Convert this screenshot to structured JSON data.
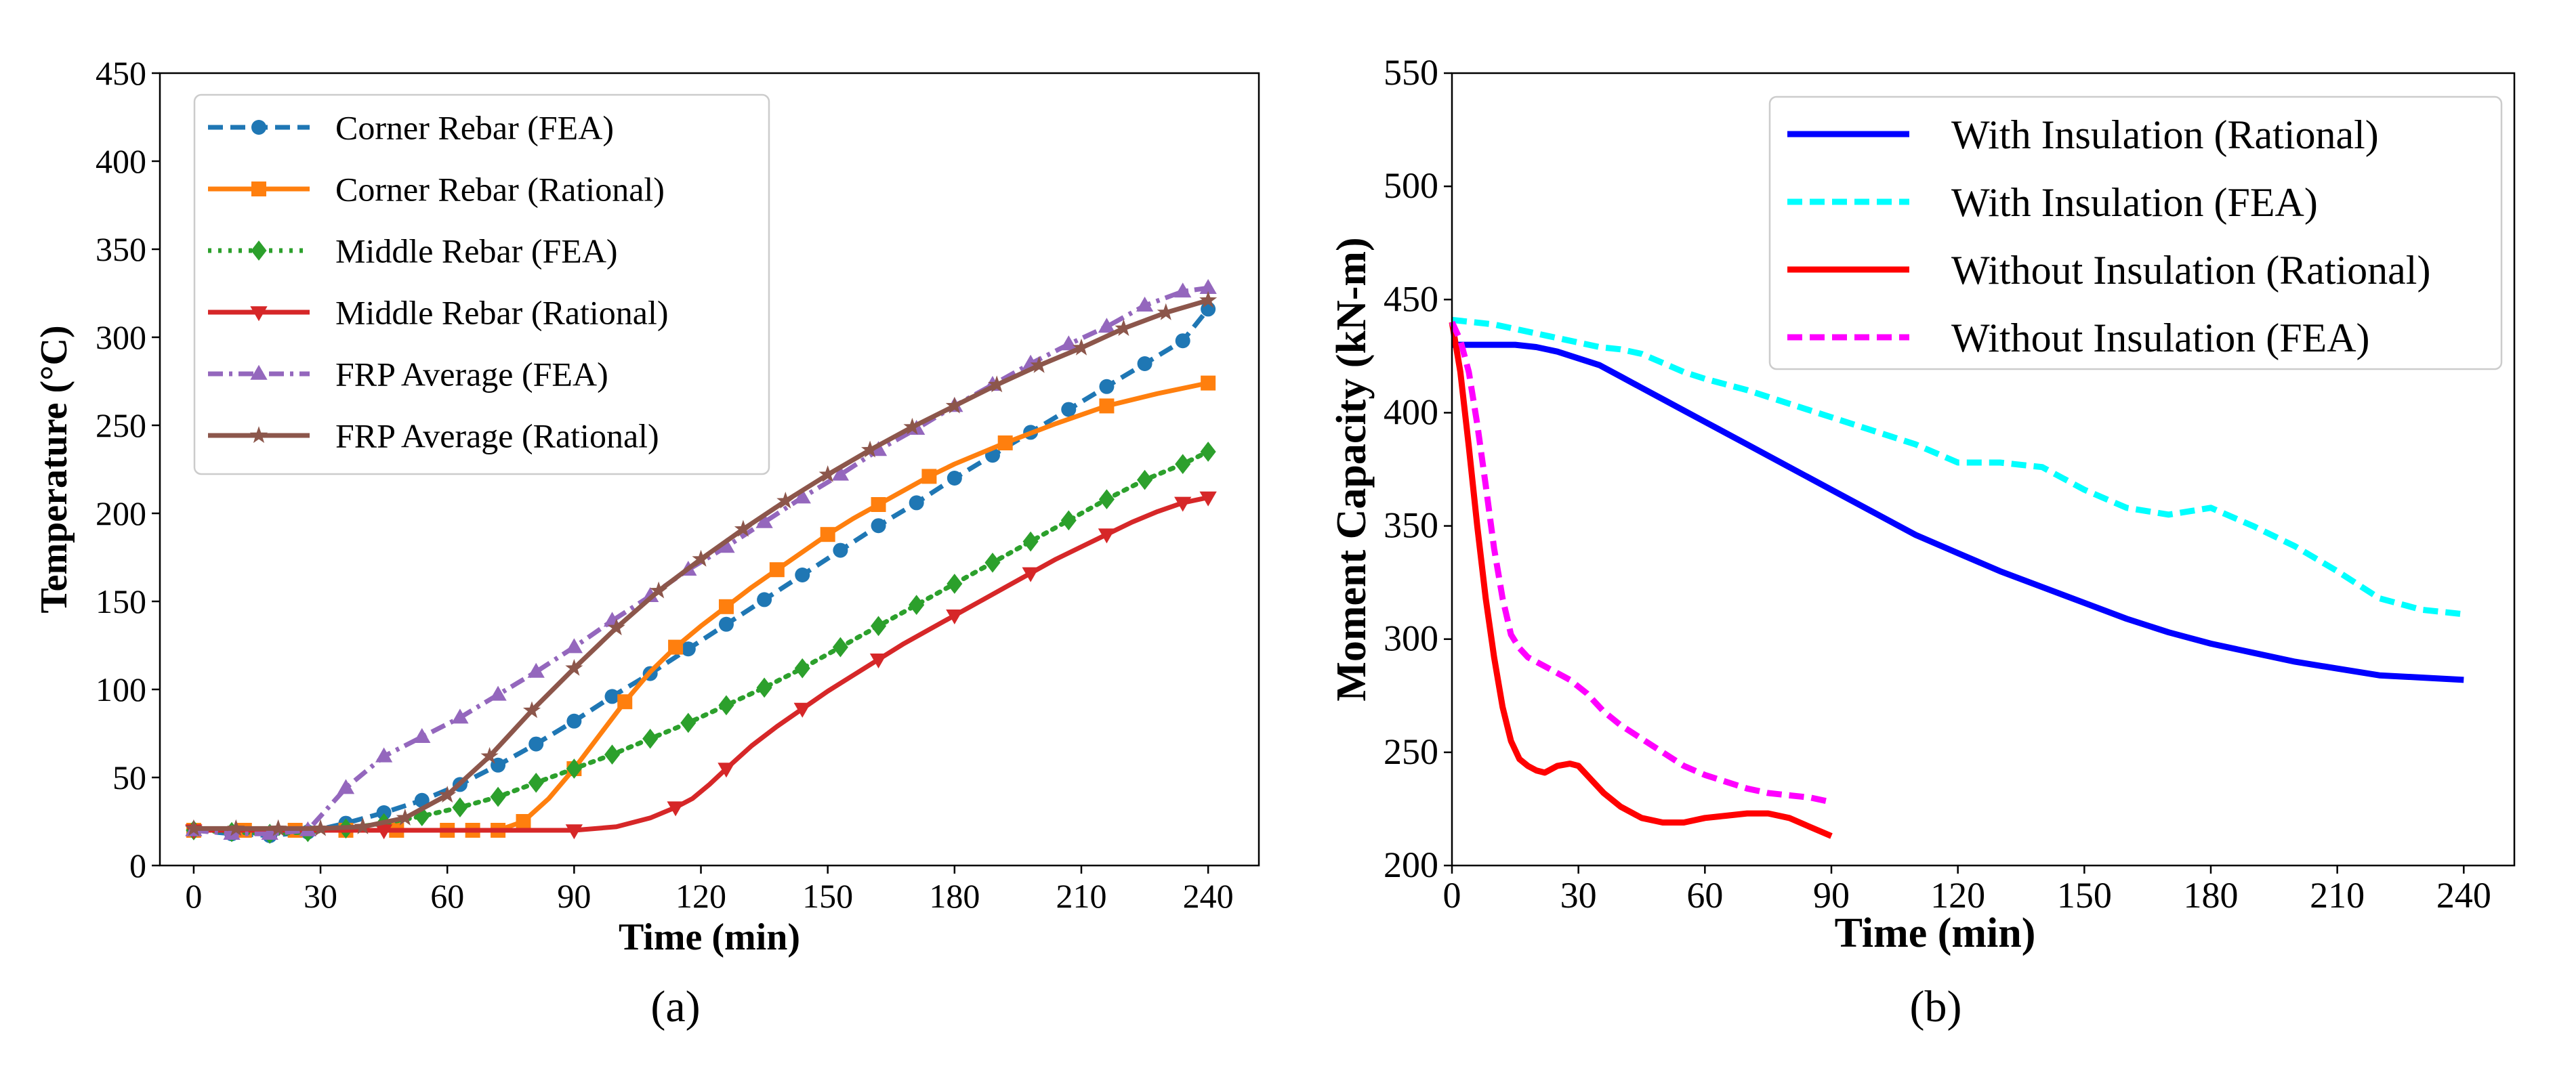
{
  "chart_data": [
    {
      "type": "line",
      "panel_label": "(a)",
      "xlabel": "Time (min)",
      "ylabel": "Temperature (°C)",
      "xlim": [
        -8,
        252
      ],
      "ylim": [
        0,
        450
      ],
      "xticks": [
        "0",
        "30",
        "60",
        "90",
        "120",
        "150",
        "180",
        "210",
        "240"
      ],
      "yticks": [
        "0",
        "50",
        "100",
        "150",
        "200",
        "250",
        "300",
        "350",
        "400",
        "450"
      ],
      "legend_position": "upper-left",
      "series": [
        {
          "name": "Corner Rebar (FEA)",
          "color": "#1f77b4",
          "line": "dashed",
          "marker": "circle",
          "x": [
            0,
            9,
            18,
            27,
            36,
            45,
            54,
            63,
            72,
            81,
            90,
            99,
            108,
            117,
            126,
            135,
            144,
            153,
            162,
            171,
            180,
            189,
            198,
            207,
            216,
            225,
            234,
            240
          ],
          "y": [
            20,
            18,
            17,
            19,
            24,
            30,
            37,
            46,
            57,
            69,
            82,
            96,
            109,
            123,
            137,
            151,
            165,
            179,
            193,
            206,
            220,
            233,
            246,
            259,
            272,
            285,
            298,
            316
          ]
        },
        {
          "name": "Corner Rebar (Rational)",
          "color": "#ff7f0e",
          "line": "solid",
          "marker": "square",
          "x": [
            0,
            12,
            24,
            36,
            48,
            60,
            66,
            72,
            78,
            84,
            90,
            96,
            102,
            108,
            114,
            120,
            126,
            132,
            138,
            144,
            150,
            156,
            162,
            168,
            174,
            180,
            192,
            204,
            216,
            228,
            240
          ],
          "y": [
            20,
            20,
            20,
            20,
            20,
            20,
            20,
            20,
            25,
            38,
            55,
            74,
            93,
            110,
            124,
            136,
            147,
            158,
            168,
            178,
            188,
            197,
            205,
            213,
            221,
            228,
            240,
            251,
            261,
            268,
            274
          ]
        },
        {
          "name": "Middle Rebar (FEA)",
          "color": "#2ca02c",
          "line": "dotted",
          "marker": "diamond",
          "x": [
            0,
            9,
            18,
            27,
            36,
            45,
            54,
            63,
            72,
            81,
            90,
            99,
            108,
            117,
            126,
            135,
            144,
            153,
            162,
            171,
            180,
            189,
            198,
            207,
            216,
            225,
            234,
            240
          ],
          "y": [
            20,
            19,
            18,
            19,
            21,
            24,
            28,
            33,
            39,
            47,
            55,
            63,
            72,
            81,
            91,
            101,
            112,
            124,
            136,
            148,
            160,
            172,
            184,
            196,
            208,
            219,
            228,
            235
          ]
        },
        {
          "name": "Middle Rebar (Rational)",
          "color": "#d62728",
          "line": "solid",
          "marker": "triangle-down",
          "x": [
            0,
            15,
            30,
            45,
            60,
            75,
            90,
            100,
            108,
            114,
            118,
            122,
            126,
            132,
            138,
            144,
            150,
            156,
            162,
            168,
            174,
            180,
            186,
            192,
            198,
            204,
            210,
            216,
            222,
            228,
            234,
            240
          ],
          "y": [
            20,
            20,
            20,
            20,
            20,
            20,
            20,
            22,
            27,
            33,
            38,
            46,
            55,
            68,
            79,
            89,
            99,
            108,
            117,
            126,
            134,
            142,
            150,
            158,
            166,
            174,
            181,
            188,
            195,
            201,
            206,
            209
          ]
        },
        {
          "name": "FRP Average (FEA)",
          "color": "#9467bd",
          "line": "dashdot",
          "marker": "triangle-up",
          "x": [
            0,
            9,
            18,
            27,
            36,
            45,
            54,
            63,
            72,
            81,
            90,
            99,
            108,
            117,
            126,
            135,
            144,
            153,
            162,
            171,
            180,
            189,
            198,
            207,
            216,
            225,
            234,
            240
          ],
          "y": [
            20,
            18,
            18,
            20,
            44,
            62,
            73,
            84,
            97,
            110,
            124,
            139,
            153,
            168,
            181,
            195,
            209,
            222,
            236,
            248,
            261,
            273,
            285,
            296,
            306,
            318,
            326,
            328
          ]
        },
        {
          "name": "FRP Average (Rational)",
          "color": "#8c564b",
          "line": "solid",
          "marker": "star",
          "x": [
            0,
            10,
            20,
            30,
            40,
            50,
            60,
            70,
            80,
            90,
            100,
            110,
            120,
            130,
            140,
            150,
            160,
            170,
            180,
            190,
            200,
            210,
            220,
            230,
            240
          ],
          "y": [
            21,
            21,
            21,
            21,
            22,
            27,
            40,
            62,
            88,
            112,
            135,
            156,
            174,
            191,
            207,
            222,
            236,
            249,
            261,
            273,
            284,
            294,
            305,
            314,
            321
          ]
        }
      ]
    },
    {
      "type": "line",
      "panel_label": "(b)",
      "xlabel": "Time (min)",
      "ylabel": "Moment Capacity (kN-m)",
      "xlim": [
        0,
        252
      ],
      "ylim": [
        200,
        550
      ],
      "xticks": [
        "0",
        "30",
        "60",
        "90",
        "120",
        "150",
        "180",
        "210",
        "240"
      ],
      "yticks": [
        "200",
        "250",
        "300",
        "350",
        "400",
        "450",
        "500",
        "550"
      ],
      "legend_position": "upper-right",
      "series": [
        {
          "name": "With Insulation (Rational)",
          "color": "#0000ff",
          "line": "solid",
          "x": [
            0,
            5,
            10,
            15,
            20,
            25,
            30,
            35,
            40,
            45,
            50,
            55,
            60,
            70,
            80,
            90,
            100,
            110,
            120,
            130,
            140,
            150,
            160,
            170,
            180,
            190,
            200,
            210,
            220,
            230,
            240
          ],
          "y": [
            430,
            430,
            430,
            430,
            429,
            427,
            424,
            421,
            416,
            411,
            406,
            401,
            396,
            386,
            376,
            366,
            356,
            346,
            338,
            330,
            323,
            316,
            309,
            303,
            298,
            294,
            290,
            287,
            284,
            283,
            282
          ]
        },
        {
          "name": "With Insulation (FEA)",
          "color": "#00ffff",
          "line": "dashed",
          "x": [
            0,
            5,
            10,
            15,
            20,
            25,
            30,
            35,
            40,
            45,
            50,
            55,
            60,
            70,
            80,
            90,
            100,
            110,
            120,
            130,
            140,
            150,
            160,
            170,
            180,
            190,
            200,
            210,
            220,
            230,
            240
          ],
          "y": [
            441,
            440,
            439,
            437,
            435,
            433,
            431,
            429,
            428,
            426,
            422,
            418,
            415,
            410,
            404,
            398,
            392,
            386,
            378,
            378,
            376,
            366,
            358,
            355,
            358,
            350,
            341,
            330,
            318,
            313,
            311
          ]
        },
        {
          "name": "Without Insulation (Rational)",
          "color": "#ff0000",
          "line": "solid",
          "x": [
            0,
            2,
            4,
            6,
            8,
            10,
            12,
            14,
            16,
            18,
            20,
            22,
            25,
            28,
            30,
            33,
            36,
            40,
            45,
            50,
            55,
            60,
            65,
            70,
            75,
            80,
            85,
            90
          ],
          "y": [
            440,
            418,
            385,
            350,
            318,
            292,
            270,
            255,
            247,
            244,
            242,
            241,
            244,
            245,
            244,
            238,
            232,
            226,
            221,
            219,
            219,
            221,
            222,
            223,
            223,
            221,
            217,
            213
          ]
        },
        {
          "name": "Without Insulation (FEA)",
          "color": "#ff00ff",
          "line": "dashed",
          "x": [
            0,
            2,
            4,
            6,
            8,
            10,
            12,
            14,
            16,
            18,
            20,
            24,
            28,
            32,
            36,
            40,
            45,
            50,
            55,
            60,
            65,
            70,
            75,
            80,
            85,
            90
          ],
          "y": [
            440,
            432,
            418,
            395,
            368,
            340,
            318,
            302,
            296,
            292,
            290,
            286,
            282,
            276,
            268,
            262,
            256,
            250,
            244,
            240,
            237,
            234,
            232,
            231,
            230,
            228
          ]
        }
      ]
    }
  ]
}
